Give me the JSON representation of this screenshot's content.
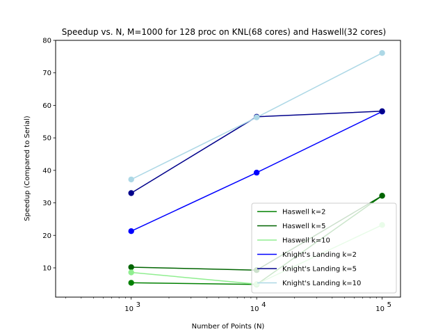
{
  "chart_data": {
    "type": "line",
    "title": "Speedup vs. N, M=1000 for 128 proc on KNL(68 cores) and Haswell(32 cores)",
    "xlabel": "Number of Points (N)",
    "ylabel": "Speedup (Compared to Serial)",
    "xscale": "log",
    "xlim": [
      250,
      140000
    ],
    "ylim": [
      1,
      80
    ],
    "x": [
      1000,
      10000,
      100000
    ],
    "x_tick_labels": [
      {
        "value": 1000,
        "base": "10",
        "exp": "3"
      },
      {
        "value": 10000,
        "base": "10",
        "exp": "4"
      },
      {
        "value": 100000,
        "base": "10",
        "exp": "5"
      }
    ],
    "y_ticks": [
      10,
      20,
      30,
      40,
      50,
      60,
      70,
      80
    ],
    "grid": false,
    "legend_position": "lower-right",
    "series": [
      {
        "name": "Haswell k=2",
        "color": "#008000",
        "values": [
          5.4,
          4.9,
          32.2
        ]
      },
      {
        "name": "Haswell k=5",
        "color": "#006400",
        "values": [
          10.2,
          9.3,
          32.2
        ]
      },
      {
        "name": "Haswell k=10",
        "color": "#90ee90",
        "values": [
          8.6,
          5.0,
          23.2
        ]
      },
      {
        "name": "Knight's Landing k=2",
        "color": "#0000ff",
        "values": [
          21.3,
          39.3,
          58.1
        ]
      },
      {
        "name": "Knight's Landing k=5",
        "color": "#00008b",
        "values": [
          33.0,
          56.5,
          58.2
        ]
      },
      {
        "name": "Knight's Landing k=10",
        "color": "#add8e6",
        "values": [
          37.2,
          56.3,
          76.1
        ]
      }
    ]
  }
}
